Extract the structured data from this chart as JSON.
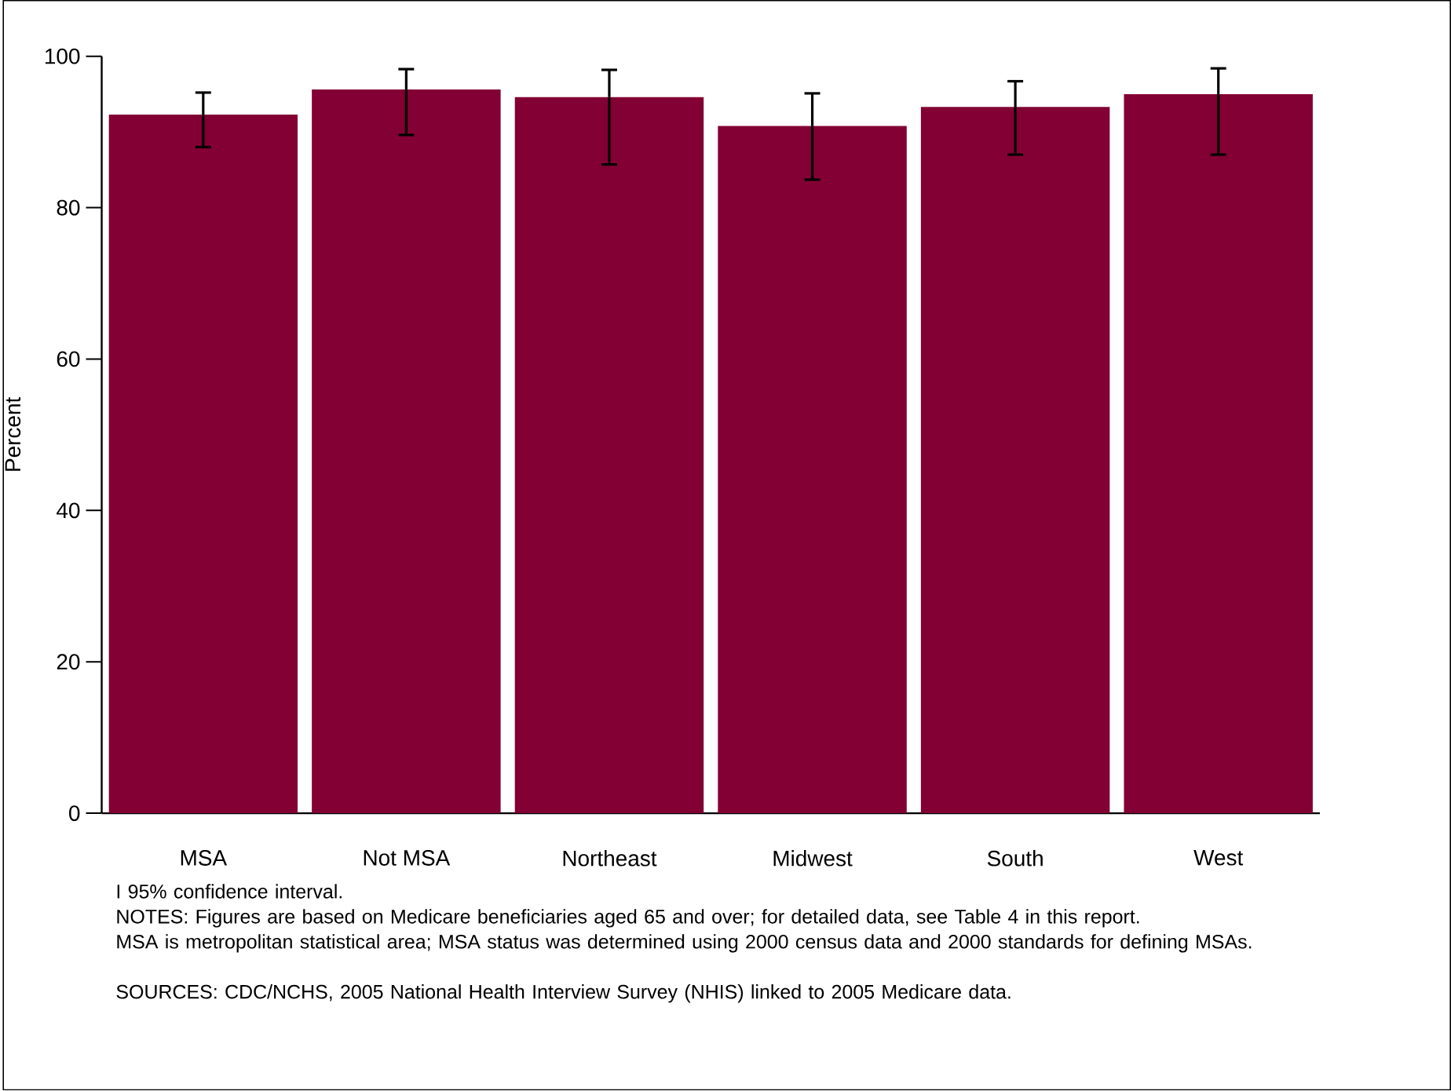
{
  "chart_data": {
    "type": "bar",
    "ylabel": "Percent",
    "categories": [
      "MSA",
      "Not MSA",
      "Northeast",
      "Midwest",
      "South",
      "West"
    ],
    "values": [
      92.3,
      95.6,
      94.6,
      90.8,
      93.3,
      95.0
    ],
    "errors": [
      [
        88.0,
        95.2
      ],
      [
        89.6,
        98.3
      ],
      [
        85.7,
        98.2
      ],
      [
        83.7,
        95.1
      ],
      [
        87.0,
        96.7
      ],
      [
        87.0,
        98.4
      ]
    ],
    "color": "#820033",
    "ylim": [
      0,
      100
    ],
    "yticks": [
      0,
      20,
      40,
      60,
      80,
      100
    ],
    "annotations": [
      "I 95% confidence interval.",
      "NOTES: Figures are based on Medicare beneficiaries aged 65 and over; for detailed data, see Table 4 in this report.",
      "MSA is metropolitan statistical area; MSA status was determined using 2000 census data and 2000 standards for defining MSAs.",
      "SOURCES: CDC/NCHS, 2005 National Health Interview Survey (NHIS) linked to 2005 Medicare data."
    ]
  }
}
